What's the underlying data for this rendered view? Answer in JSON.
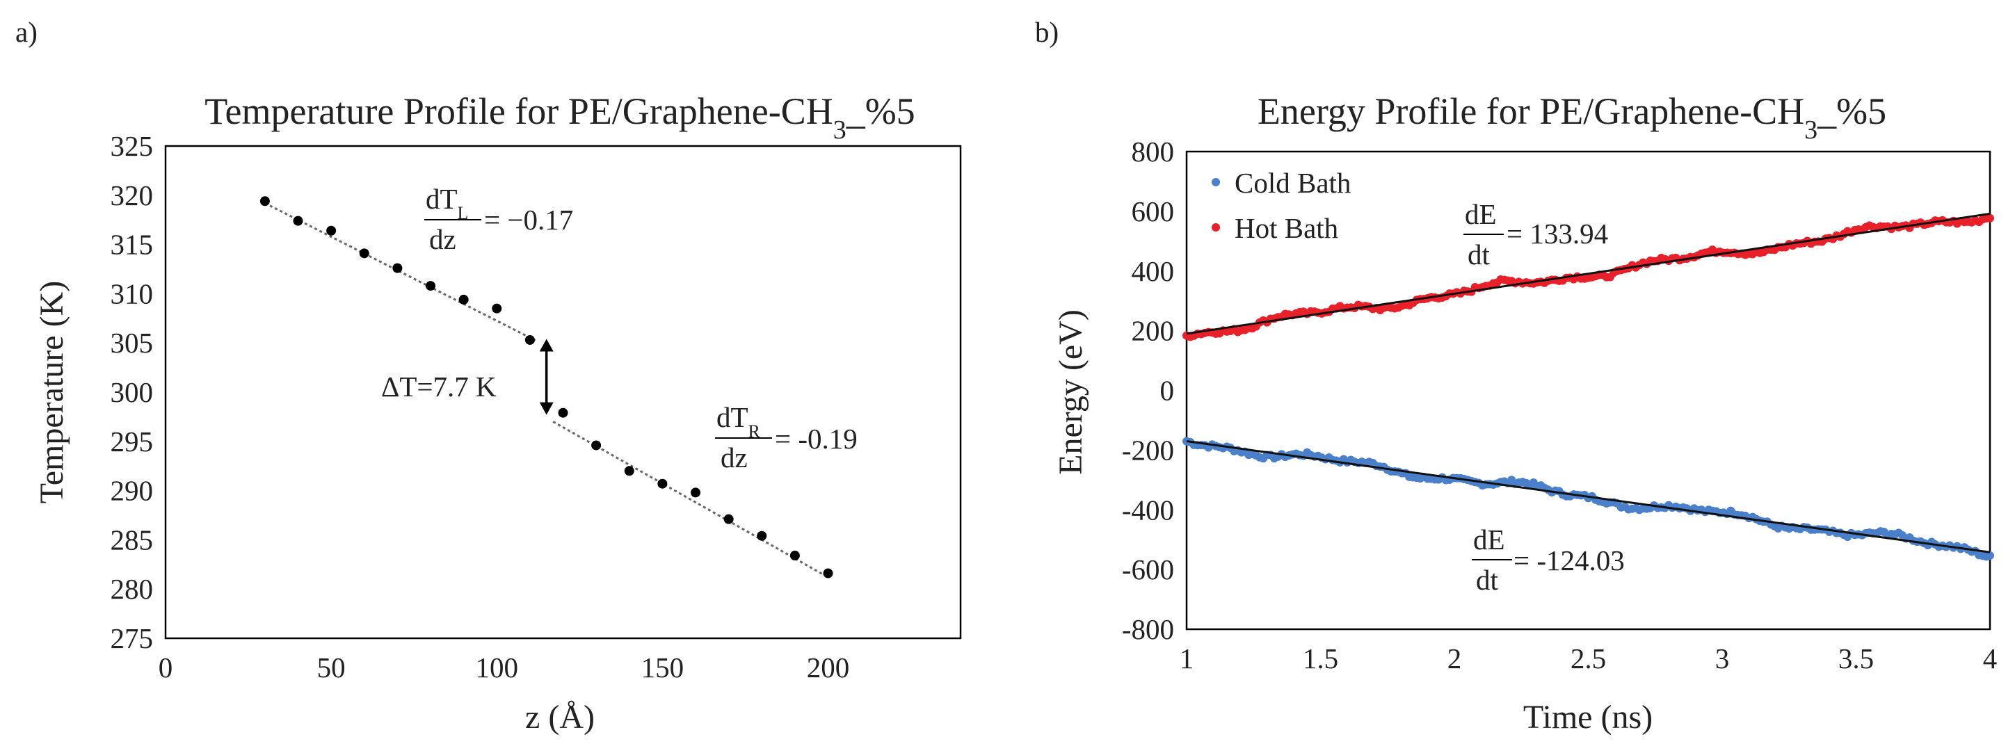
{
  "chart_data": [
    {
      "panel_label": "a)",
      "type": "scatter",
      "title": "Temperature Profile for PE/Graphene-CH",
      "title_sub": "3",
      "title_suffix": "_%5",
      "xlabel": "z (Å)",
      "ylabel": "Temperature (K)",
      "xlim": [
        0,
        240
      ],
      "ylim": [
        275,
        325
      ],
      "xticks": [
        "0",
        "50",
        "100",
        "150",
        "200"
      ],
      "yticks": [
        "275",
        "280",
        "285",
        "290",
        "295",
        "300",
        "305",
        "310",
        "315",
        "320",
        "325"
      ],
      "series": [
        {
          "name": "Temperature",
          "x": [
            30,
            40,
            50,
            60,
            70,
            80,
            90,
            100,
            110,
            120,
            130,
            140,
            150,
            160,
            170,
            180,
            190,
            200
          ],
          "y": [
            319.4,
            317.4,
            316.4,
            314.1,
            312.6,
            310.8,
            309.4,
            308.5,
            305.3,
            297.9,
            294.6,
            292.0,
            290.7,
            289.8,
            287.1,
            285.4,
            283.4,
            281.6
          ]
        }
      ],
      "fits": [
        {
          "name": "left fit",
          "x": [
            30,
            112
          ],
          "y": [
            319.2,
            305.2
          ]
        },
        {
          "name": "right fit",
          "x": [
            117,
            200
          ],
          "y": [
            297.0,
            281.2
          ]
        }
      ],
      "annotations": {
        "left_slope": {
          "num": "dT",
          "sub": "L",
          "den": "dz",
          "value": "= −0.17"
        },
        "right_slope": {
          "num": "dT",
          "sub": "R",
          "den": "dz",
          "value": "= -0.19"
        },
        "delta_t": "ΔT=7.7 K",
        "delta_t_range": [
          297.7,
          305.4
        ],
        "delta_t_x": 115
      }
    },
    {
      "panel_label": "b)",
      "type": "scatter",
      "title": "Energy Profile for PE/Graphene-CH",
      "title_sub": "3",
      "title_suffix": "_%5",
      "xlabel": "Time (ns)",
      "ylabel": "Energy (eV)",
      "xlim": [
        1,
        4
      ],
      "ylim": [
        -800,
        800
      ],
      "xticks": [
        "1",
        "1.5",
        "2",
        "2.5",
        "3",
        "3.5",
        "4"
      ],
      "yticks": [
        "-800",
        "-600",
        "-400",
        "-200",
        "0",
        "200",
        "400",
        "600",
        "800"
      ],
      "series": [
        {
          "name": "Cold Bath",
          "color": "#4a7fc9",
          "slope": -124.03,
          "intercept_at_1": -170
        },
        {
          "name": "Hot Bath",
          "color": "#e8202a",
          "slope": 133.94,
          "intercept_at_1": 190
        }
      ],
      "fit_color": "#111111",
      "annotations": {
        "hot_slope": {
          "num": "dE",
          "den": "dt",
          "value": "= 133.94"
        },
        "cold_slope": {
          "num": "dE",
          "den": "dt",
          "value": "= -124.03"
        }
      }
    }
  ]
}
